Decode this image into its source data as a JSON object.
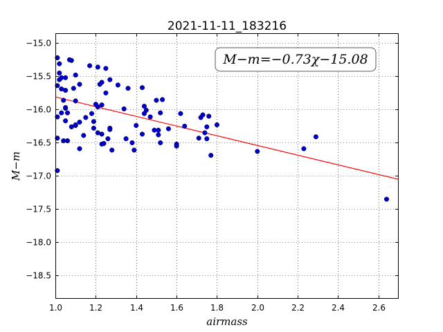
{
  "chart_data": {
    "type": "scatter",
    "title": "2021-11-11_183216",
    "xlabel": "airmass",
    "ylabel": "M−m",
    "xlim": [
      1.0,
      2.7
    ],
    "ylim": [
      -18.85,
      -14.85
    ],
    "y_inverted": false,
    "grid": true,
    "xticks": [
      1.0,
      1.2,
      1.4,
      1.6,
      1.8,
      2.0,
      2.2,
      2.4,
      2.6
    ],
    "xtick_labels": [
      "1.0",
      "1.2",
      "1.4",
      "1.6",
      "1.8",
      "2.0",
      "2.2",
      "2.4",
      "2.6"
    ],
    "yticks": [
      -15.0,
      -15.5,
      -16.0,
      -16.5,
      -17.0,
      -17.5,
      -18.0,
      -18.5
    ],
    "ytick_labels": [
      "−15.0",
      "−15.5",
      "−16.0",
      "−16.5",
      "−17.0",
      "−17.5",
      "−18.0",
      "−18.5"
    ],
    "annotation": "M−m=−0.73χ−15.08",
    "annotation_position": "top-right",
    "points": {
      "x": [
        1.01,
        1.02,
        1.02,
        1.03,
        1.07,
        1.08,
        1.01,
        1.02,
        1.05,
        1.1,
        1.05,
        1.03,
        1.01,
        1.05,
        1.12,
        1.09,
        1.04,
        1.05,
        1.17,
        1.21,
        1.23,
        1.22,
        1.25,
        1.31,
        1.27,
        1.12,
        1.1,
        1.03,
        1.05,
        1.1,
        1.15,
        1.18,
        1.2,
        1.19,
        1.23,
        1.23,
        1.25,
        1.34,
        1.36,
        1.43,
        1.44,
        1.45,
        1.5,
        1.53,
        1.52,
        1.21,
        1.01,
        1.06,
        1.08,
        1.1,
        1.12,
        1.14,
        1.19,
        1.21,
        1.24,
        1.27,
        1.27,
        1.4,
        1.43,
        1.49,
        1.51,
        1.51,
        1.44,
        1.47,
        1.56,
        1.62,
        1.64,
        1.71,
        1.72,
        1.76,
        1.75,
        1.73,
        1.75,
        1.8,
        1.23,
        1.26,
        1.28,
        1.35,
        1.38,
        1.39,
        1.52,
        1.6,
        1.6,
        1.74,
        1.77,
        2.0,
        2.23,
        2.29,
        1.01,
        2.64,
        1.04,
        1.06
      ],
      "y": [
        -15.22,
        -15.31,
        -15.45,
        -15.52,
        -15.25,
        -15.26,
        -15.64,
        -15.55,
        -15.52,
        -15.48,
        -15.71,
        -15.69,
        -16.11,
        -15.98,
        -15.62,
        -15.68,
        -15.86,
        -15.97,
        -15.34,
        -15.36,
        -15.59,
        -15.62,
        -15.38,
        -15.63,
        -15.55,
        -16.19,
        -16.24,
        -16.05,
        -16.17,
        -15.87,
        -16.12,
        -16.06,
        -15.92,
        -16.18,
        -16.37,
        -15.93,
        -15.75,
        -15.99,
        -15.68,
        -15.67,
        -15.95,
        -16.01,
        -15.86,
        -15.85,
        -16.05,
        -15.96,
        -16.43,
        -16.47,
        -16.26,
        -16.23,
        -16.59,
        -16.39,
        -16.28,
        -16.35,
        -16.51,
        -16.28,
        -16.3,
        -16.24,
        -16.37,
        -16.31,
        -16.31,
        -16.38,
        -16.06,
        -16.11,
        -16.29,
        -16.06,
        -16.25,
        -16.43,
        -16.12,
        -16.1,
        -16.26,
        -16.08,
        -16.44,
        -16.23,
        -16.52,
        -16.44,
        -16.61,
        -16.44,
        -16.5,
        -16.61,
        -16.5,
        -16.52,
        -16.55,
        -16.35,
        -16.69,
        -16.63,
        -16.59,
        -16.41,
        -16.92,
        -17.35,
        -16.47,
        -16.05
      ],
      "color": "#0000cc"
    },
    "fit_line": {
      "slope": -0.73,
      "intercept": -15.08,
      "x_range": [
        1.0,
        2.7
      ],
      "color": "#ff0000"
    }
  }
}
